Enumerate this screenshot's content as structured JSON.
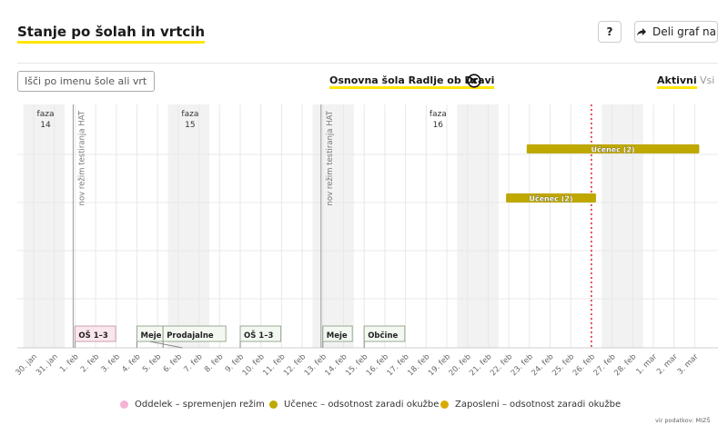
{
  "header": {
    "title": "Stanje po šolah in vrtcih",
    "help_label": "?",
    "share_label": "Deli graf na"
  },
  "filter": {
    "search_placeholder": "Išči po imenu šole ali vrtca",
    "selected_school": "Osnovna šola Radlje ob Dravi",
    "tab_active": "Aktivni",
    "tab_all": "Vsi"
  },
  "colors": {
    "accent": "#ffe600",
    "ucenec": "#bfa800",
    "zaposleni": "#d9a900",
    "oddelek": "#f5b4d6",
    "today": "#e8202a",
    "weekend": "#f2f2f2",
    "grid": "#e8e8e8"
  },
  "chart_data": {
    "type": "gantt",
    "x_dates": [
      "30. jan",
      "31. jan",
      "1. feb",
      "2. feb",
      "3. feb",
      "4. feb",
      "5. feb",
      "6. feb",
      "7. feb",
      "8. feb",
      "9. feb",
      "10. feb",
      "11. feb",
      "12. feb",
      "13. feb",
      "14. feb",
      "15. feb",
      "16. feb",
      "17. feb",
      "18. feb",
      "19. feb",
      "20. feb",
      "21. feb",
      "22. feb",
      "23. feb",
      "24. feb",
      "25. feb",
      "26. feb",
      "27. feb",
      "28. feb",
      "1. mar",
      "2. mar",
      "3. mar"
    ],
    "weekend_days": [
      "30. jan",
      "31. jan",
      "6. feb",
      "7. feb",
      "13. feb",
      "14. feb",
      "20. feb",
      "21. feb",
      "27. feb",
      "28. feb"
    ],
    "phases": [
      {
        "label": "faza",
        "number": "14",
        "date": "30. jan"
      },
      {
        "label": "faza",
        "number": "15",
        "date": "6. feb"
      },
      {
        "label": "faza",
        "number": "16",
        "date": "18. feb"
      }
    ],
    "regime_lines": [
      {
        "date": "1. feb",
        "label": "nov režim testiranja HAT"
      },
      {
        "date": "13. feb",
        "label": "nov režim testiranja HAT"
      }
    ],
    "today": "26. feb",
    "bars": [
      {
        "label": "Učenec (2)",
        "category": "ucenec",
        "start": "23. feb",
        "end": "3. mar",
        "row": 0
      },
      {
        "label": "Učenec (2)",
        "category": "ucenec",
        "start": "22. feb",
        "end": "26. feb",
        "row": 1
      }
    ],
    "events": [
      {
        "label": "OŠ 1–3",
        "date": "1. feb",
        "type": "oddelek"
      },
      {
        "label": "Meje",
        "date": "4. feb",
        "type": "neutral"
      },
      {
        "label": "Prodajalne",
        "date": "5. feb",
        "type": "neutral"
      },
      {
        "label": "OŠ 1–3",
        "date": "9. feb",
        "type": "neutral"
      },
      {
        "label": "Meje",
        "date": "13. feb",
        "type": "neutral"
      },
      {
        "label": "Občine",
        "date": "15. feb",
        "type": "neutral"
      }
    ],
    "legend": [
      {
        "label": "Oddelek – spremenjen režim",
        "color": "#f5b4d6"
      },
      {
        "label": "Učenec – odsotnost zaradi okužbe",
        "color": "#bfa800"
      },
      {
        "label": "Zaposleni – odsotnost zaradi okužbe",
        "color": "#d9a900"
      }
    ],
    "legend_position": "bottom",
    "grid": true
  },
  "source": "vir podatkov: MIZŠ"
}
